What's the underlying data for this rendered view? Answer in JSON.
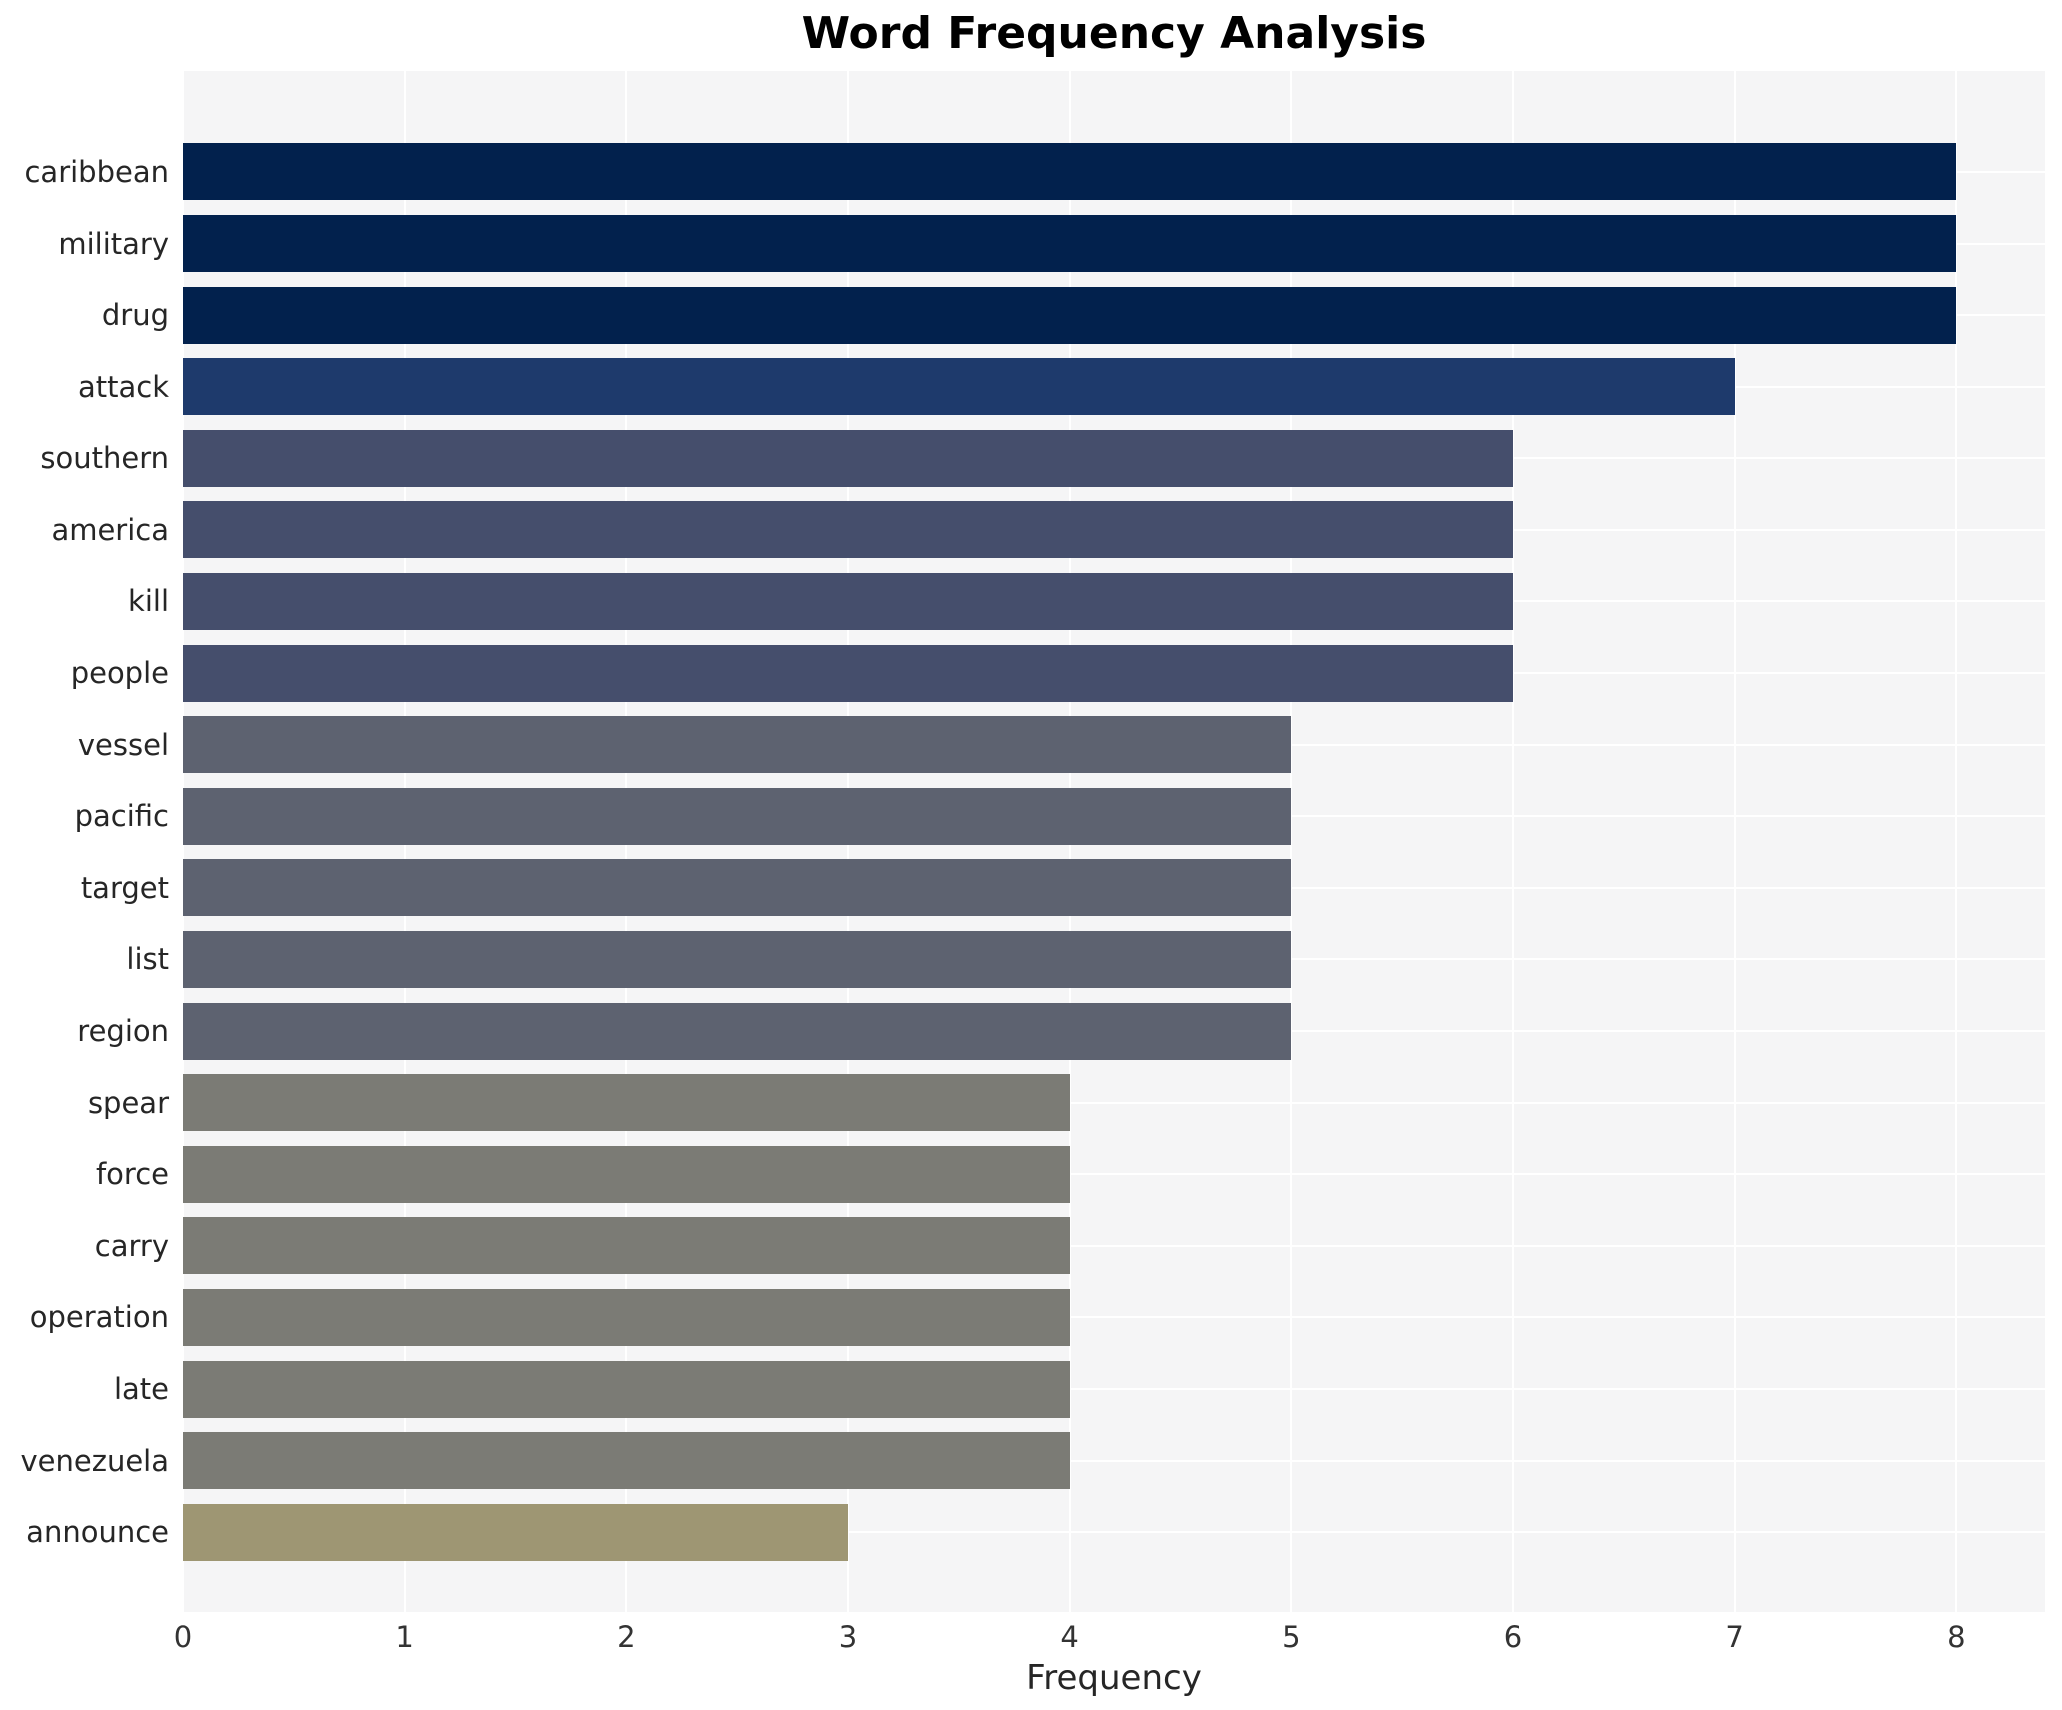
{
  "title": "Word Frequency Analysis",
  "xlabel": "Frequency",
  "chart_data": {
    "type": "bar",
    "orientation": "horizontal",
    "title": "Word Frequency Analysis",
    "xlabel": "Frequency",
    "ylabel": "",
    "xlim": [
      0,
      8.4
    ],
    "x_ticks": [
      0,
      1,
      2,
      3,
      4,
      5,
      6,
      7,
      8
    ],
    "grid": true,
    "legend": false,
    "categories": [
      "caribbean",
      "military",
      "drug",
      "attack",
      "southern",
      "america",
      "kill",
      "people",
      "vessel",
      "pacific",
      "target",
      "list",
      "region",
      "spear",
      "force",
      "carry",
      "operation",
      "late",
      "venezuela",
      "announce"
    ],
    "values": [
      8,
      8,
      8,
      7,
      6,
      6,
      6,
      6,
      5,
      5,
      5,
      5,
      5,
      4,
      4,
      4,
      4,
      4,
      4,
      3
    ]
  },
  "colors": {
    "plot_background": "#f5f5f6",
    "gridline": "#ffffff",
    "title_text": "#000000",
    "label_text": "#262626",
    "tick_text": "#333333",
    "bar_color_by_value": {
      "8": "#02214d",
      "7": "#1e3a6c",
      "6": "#454e6c",
      "5": "#5d6270",
      "4": "#7b7b75",
      "3": "#9e9673"
    }
  }
}
